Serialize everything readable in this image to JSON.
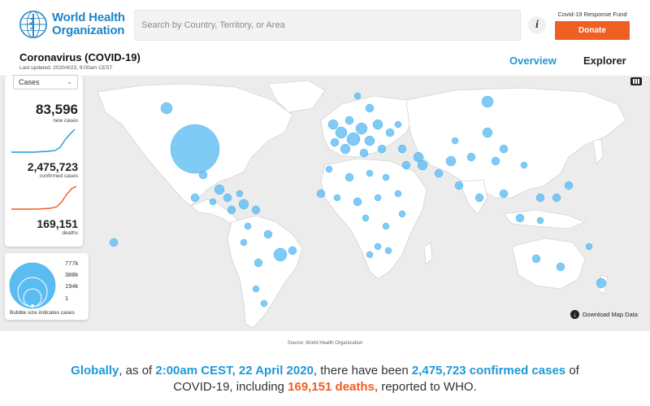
{
  "header": {
    "org_name_line1": "World Health",
    "org_name_line2": "Organization",
    "search_placeholder": "Search by Country, Territory, or Area",
    "info_icon": "i",
    "fund_label": "Covid-19 Response Fund",
    "donate_label": "Donate"
  },
  "page": {
    "title": "Coronavirus (COVID-19)",
    "last_updated": "Last updated: 2020/4/23, 9:00am CEST"
  },
  "tabs": [
    {
      "label": "Overview",
      "active": true
    },
    {
      "label": "Explorer",
      "active": false
    }
  ],
  "stats_panel": {
    "metric_select": "Cases",
    "new_cases": "83,596",
    "new_cases_label": "new cases",
    "confirmed": "2,475,723",
    "confirmed_label": "confirmed cases",
    "deaths": "169,151",
    "deaths_label": "deaths"
  },
  "bubble_legend": {
    "values": [
      "777k",
      "388k",
      "194k",
      "1"
    ],
    "note": "Bubble size indicates cases"
  },
  "map": {
    "download_label": "Download Map Data",
    "source": "Source: World Health Organization"
  },
  "summary": {
    "p1": "Globally",
    "p2": ", as of ",
    "p3": "2:00am CEST, 22 April 2020",
    "p4": ", there have been ",
    "p5": "2,475,723 confirmed cases",
    "p6": " of COVID-19, including ",
    "p7": "169,151 deaths,",
    "p8": " reported to WHO."
  },
  "colors": {
    "brand_blue": "#1f84c7",
    "accent_blue": "#1f98d8",
    "donate_orange": "#ef5e22",
    "bubble": "#5bbcf2",
    "land": "#ffffff",
    "ocean": "#ececec"
  },
  "icons": {
    "logo": "who-emblem-icon",
    "info": "info-icon",
    "download": "download-icon",
    "map_options": "map-options-icon",
    "dropdown": "chevron-down-icon"
  }
}
